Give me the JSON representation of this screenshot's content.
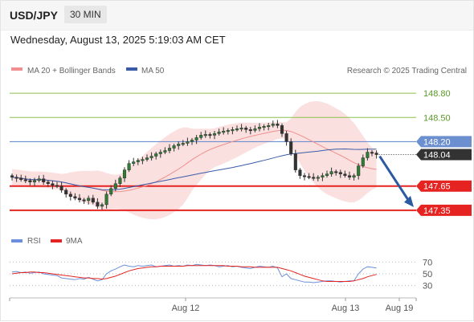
{
  "header": {
    "symbol": "USD/JPY",
    "timeframe": "30 MIN"
  },
  "datetime": "Wednesday, August 13, 2025 5:19:03 AM CET",
  "legend": {
    "bollinger": "MA 20 + Bollinger Bands",
    "ma50": "MA 50",
    "credit": "Research © 2025 Trading Central"
  },
  "rsi_legend": {
    "rsi": "RSI",
    "ma": "9MA"
  },
  "colors": {
    "bollinger": "#f08f8f",
    "ma50": "#3a5ba8",
    "candle": "#2e7d32",
    "support": "#e52421",
    "current": "#333333",
    "arrow": "#2c5aa0",
    "resistance_green": "#8cc14a",
    "resistance_blue": "#6b8fcf",
    "rsi": "#6b8fdc",
    "rsi_ma": "#e52421"
  },
  "chart_data": {
    "type": "candlestick",
    "x_labels": [
      "Aug 12",
      "Aug 13",
      "Aug 19"
    ],
    "price_range": [
      147.2,
      148.95
    ],
    "levels": [
      {
        "value": 148.8,
        "label": "148.80",
        "kind": "resistance-green"
      },
      {
        "value": 148.5,
        "label": "148.50",
        "kind": "resistance-green"
      },
      {
        "value": 148.2,
        "label": "148.20",
        "kind": "resistance-blue"
      },
      {
        "value": 148.04,
        "label": "148.04",
        "kind": "current"
      },
      {
        "value": 147.65,
        "label": "147.65",
        "kind": "support"
      },
      {
        "value": 147.35,
        "label": "147.35",
        "kind": "support"
      }
    ],
    "close": [
      147.76,
      147.75,
      147.73,
      147.72,
      147.7,
      147.72,
      147.74,
      147.7,
      147.68,
      147.66,
      147.65,
      147.6,
      147.55,
      147.52,
      147.5,
      147.48,
      147.47,
      147.5,
      147.45,
      147.4,
      147.42,
      147.55,
      147.62,
      147.68,
      147.75,
      147.85,
      147.93,
      147.95,
      147.97,
      147.98,
      148.0,
      148.02,
      148.05,
      148.07,
      148.09,
      148.12,
      148.15,
      148.17,
      148.18,
      148.2,
      148.22,
      148.25,
      148.28,
      148.29,
      148.28,
      148.3,
      148.32,
      148.33,
      148.34,
      148.35,
      148.36,
      148.37,
      148.35,
      148.34,
      148.36,
      148.38,
      148.39,
      148.4,
      148.42,
      148.4,
      148.3,
      148.2,
      148.05,
      147.85,
      147.78,
      147.77,
      147.76,
      147.75,
      147.76,
      147.78,
      147.8,
      147.83,
      147.82,
      147.8,
      147.78,
      147.76,
      147.78,
      147.9,
      148.0,
      148.07,
      148.06,
      148.04
    ],
    "rsi": {
      "ticks": [
        70,
        50,
        30
      ],
      "range": [
        20,
        80
      ],
      "values": [
        53,
        54,
        52,
        53,
        51,
        52,
        53,
        50,
        49,
        48,
        47,
        43,
        42,
        41,
        40,
        42,
        41,
        44,
        41,
        38,
        40,
        50,
        55,
        58,
        62,
        65,
        63,
        62,
        64,
        63,
        64,
        65,
        62,
        63,
        64,
        65,
        63,
        64,
        63,
        65,
        64,
        66,
        65,
        64,
        65,
        64,
        62,
        63,
        64,
        62,
        63,
        61,
        60,
        59,
        61,
        63,
        62,
        61,
        63,
        60,
        45,
        50,
        42,
        40,
        38,
        36,
        36,
        35,
        36,
        37,
        38,
        38,
        37,
        36,
        37,
        38,
        38,
        50,
        58,
        62,
        61,
        60
      ],
      "ma": [
        50,
        51,
        52,
        52,
        53,
        53,
        52,
        52,
        51,
        50,
        49,
        48,
        47,
        46,
        45,
        44,
        43,
        43,
        42,
        42,
        41,
        42,
        44,
        46,
        49,
        52,
        55,
        57,
        59,
        60,
        61,
        62,
        62,
        63,
        63,
        63,
        63,
        63,
        63,
        64,
        64,
        64,
        64,
        64,
        64,
        64,
        64,
        64,
        63,
        63,
        63,
        62,
        62,
        62,
        61,
        61,
        61,
        61,
        61,
        61,
        59,
        57,
        55,
        52,
        49,
        46,
        44,
        42,
        40,
        38,
        37,
        37,
        37,
        37,
        37,
        37,
        38,
        40,
        42,
        45,
        47,
        49
      ]
    }
  }
}
